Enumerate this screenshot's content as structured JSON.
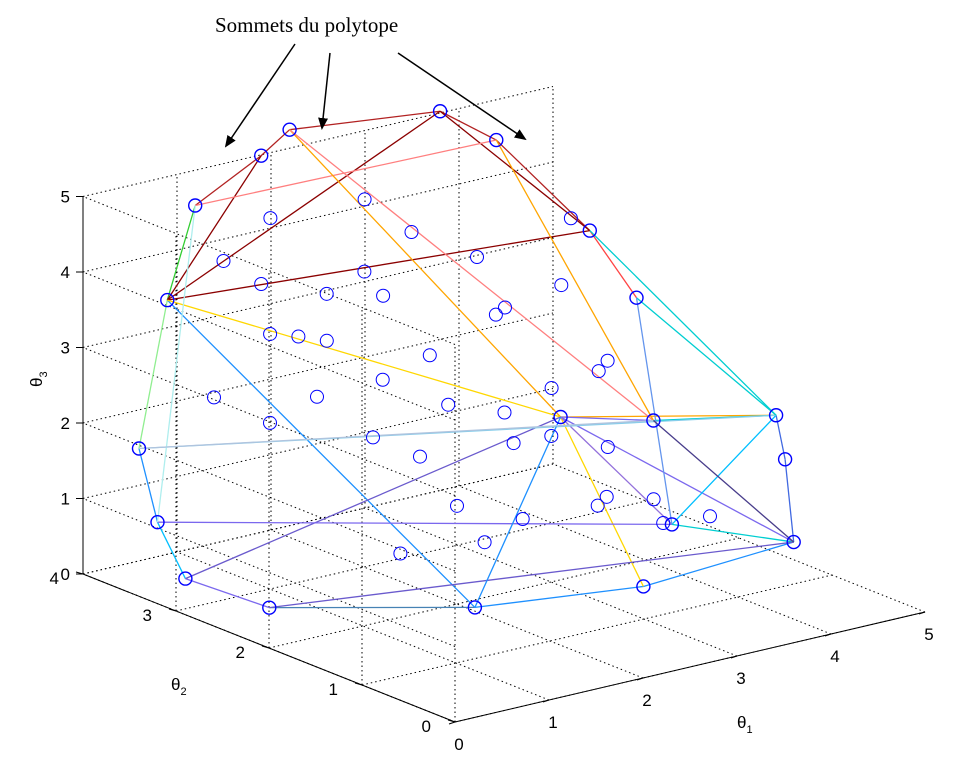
{
  "chart_data": {
    "type": "scatter",
    "subtype": "3d-convex-polytope",
    "annotation": "Sommets du polytope",
    "axes": {
      "x": {
        "label": "θ",
        "subscript": "1",
        "ticks": [
          "0",
          "1",
          "2",
          "3",
          "4",
          "5"
        ],
        "range": [
          0,
          5
        ]
      },
      "y": {
        "label": "θ",
        "subscript": "2",
        "ticks": [
          "0",
          "1",
          "2",
          "3",
          "4"
        ],
        "range": [
          0,
          4
        ]
      },
      "z": {
        "label": "θ",
        "subscript": "3",
        "ticks": [
          "0",
          "1",
          "2",
          "3",
          "4",
          "5"
        ],
        "range": [
          0,
          5
        ]
      }
    },
    "grid": true,
    "box": "dotted",
    "marker_color": "#0000ff",
    "vertices": [
      [
        0.6,
        3.4,
        5.0
      ],
      [
        1.5,
        3.6,
        5.3
      ],
      [
        2.0,
        3.8,
        5.4
      ],
      [
        3.7,
        3.9,
        5.1
      ],
      [
        4.1,
        3.7,
        4.7
      ],
      [
        4.6,
        3.2,
        3.6
      ],
      [
        4.8,
        2.9,
        2.8
      ],
      [
        4.9,
        1.5,
        1.9
      ],
      [
        4.6,
        1.1,
        1.6
      ],
      [
        3.9,
        0.3,
        1.1
      ],
      [
        2.4,
        0.4,
        0.9
      ],
      [
        1.3,
        1.1,
        0.6
      ],
      [
        0.3,
        2.3,
        0.3
      ],
      [
        0.1,
        3.0,
        0.4
      ],
      [
        0.1,
        3.3,
        1.0
      ],
      [
        0.2,
        3.6,
        1.8
      ],
      [
        0.6,
        3.7,
        3.6
      ],
      [
        3.3,
        2.2,
        2.0
      ],
      [
        3.0,
        0.7,
        1.4
      ],
      [
        3.1,
        1.0,
        2.6
      ]
    ],
    "interior_points": [
      [
        1.0,
        3.5,
        4.1
      ],
      [
        1.5,
        3.6,
        3.6
      ],
      [
        1.5,
        3.2,
        3.1
      ],
      [
        2.0,
        3.4,
        2.8
      ],
      [
        2.5,
        3.3,
        3.3
      ],
      [
        3.0,
        3.5,
        3.9
      ],
      [
        3.4,
        3.2,
        3.6
      ],
      [
        3.5,
        3.0,
        3.0
      ],
      [
        4.0,
        2.9,
        3.2
      ],
      [
        4.2,
        2.7,
        2.1
      ],
      [
        3.6,
        2.6,
        2.1
      ],
      [
        3.0,
        2.5,
        2.0
      ],
      [
        2.5,
        2.6,
        2.2
      ],
      [
        2.1,
        2.9,
        2.5
      ],
      [
        1.5,
        3.0,
        2.4
      ],
      [
        1.0,
        3.0,
        2.2
      ],
      [
        1.7,
        2.6,
        2.0
      ],
      [
        2.0,
        2.0,
        1.3
      ],
      [
        1.2,
        1.8,
        1.0
      ],
      [
        2.6,
        1.9,
        1.0
      ],
      [
        3.2,
        1.7,
        1.1
      ],
      [
        3.6,
        1.4,
        0.9
      ],
      [
        3.9,
        1.2,
        1.0
      ],
      [
        2.8,
        2.2,
        1.8
      ],
      [
        3.3,
        2.3,
        1.7
      ],
      [
        2.2,
        2.6,
        1.6
      ],
      [
        0.8,
        3.4,
        2.4
      ],
      [
        1.1,
        3.1,
        3.3
      ],
      [
        2.4,
        3.4,
        3.6
      ],
      [
        3.8,
        2.2,
        2.6
      ],
      [
        4.0,
        2.4,
        1.3
      ],
      [
        3.7,
        3.3,
        2.7
      ],
      [
        2.7,
        3.0,
        2.6
      ],
      [
        1.9,
        3.3,
        3.5
      ],
      [
        2.6,
        3.6,
        4.4
      ],
      [
        1.4,
        3.4,
        4.6
      ],
      [
        4.3,
        3.1,
        3.9
      ],
      [
        2.9,
        1.3,
        1.5
      ],
      [
        3.3,
        1.2,
        1.4
      ],
      [
        1.7,
        1.4,
        1.2
      ]
    ],
    "edges": [
      [
        0,
        1,
        "#b22222"
      ],
      [
        1,
        2,
        "#b22222"
      ],
      [
        2,
        3,
        "#b22222"
      ],
      [
        3,
        4,
        "#b22222"
      ],
      [
        4,
        5,
        "#b22222"
      ],
      [
        5,
        6,
        "#ff4444"
      ],
      [
        6,
        7,
        "#00ced1"
      ],
      [
        7,
        8,
        "#4169e1"
      ],
      [
        8,
        9,
        "#4169e1"
      ],
      [
        9,
        10,
        "#1e90ff"
      ],
      [
        10,
        11,
        "#1e90ff"
      ],
      [
        11,
        12,
        "#4682b4"
      ],
      [
        12,
        13,
        "#7b68ee"
      ],
      [
        13,
        14,
        "#00bfff"
      ],
      [
        14,
        15,
        "#1e90ff"
      ],
      [
        15,
        16,
        "#90ee90"
      ],
      [
        16,
        0,
        "#32cd32"
      ],
      [
        16,
        3,
        "#8b0000"
      ],
      [
        16,
        1,
        "#8b0000"
      ],
      [
        16,
        5,
        "#8b0000"
      ],
      [
        3,
        5,
        "#8b0000"
      ],
      [
        0,
        4,
        "#ff7f7f"
      ],
      [
        2,
        17,
        "#ffa500"
      ],
      [
        17,
        7,
        "#ffa500"
      ],
      [
        17,
        10,
        "#ffd700"
      ],
      [
        16,
        11,
        "#1e90ff"
      ],
      [
        16,
        17,
        "#ffd700"
      ],
      [
        17,
        9,
        "#7b68ee"
      ],
      [
        17,
        13,
        "#6a5acd"
      ],
      [
        17,
        18,
        "#9370db"
      ],
      [
        18,
        7,
        "#00bfff"
      ],
      [
        18,
        9,
        "#00ced1"
      ],
      [
        19,
        7,
        "#00ced1"
      ],
      [
        19,
        17,
        "#7b68ee"
      ],
      [
        15,
        7,
        "#87ceeb"
      ],
      [
        14,
        18,
        "#7b68ee"
      ],
      [
        12,
        9,
        "#6a5acd"
      ],
      [
        2,
        19,
        "#ff7f7f"
      ],
      [
        4,
        19,
        "#ffa500"
      ],
      [
        11,
        17,
        "#1e90ff"
      ],
      [
        0,
        14,
        "#afeeee"
      ],
      [
        15,
        19,
        "#b0c4de"
      ],
      [
        6,
        18,
        "#6495ed"
      ],
      [
        19,
        9,
        "#483d8b"
      ],
      [
        5,
        7,
        "#00ced1"
      ]
    ]
  },
  "colors": {
    "marker": "#0000ff",
    "annotation_arrow": "#000000",
    "grid": "#000000"
  }
}
